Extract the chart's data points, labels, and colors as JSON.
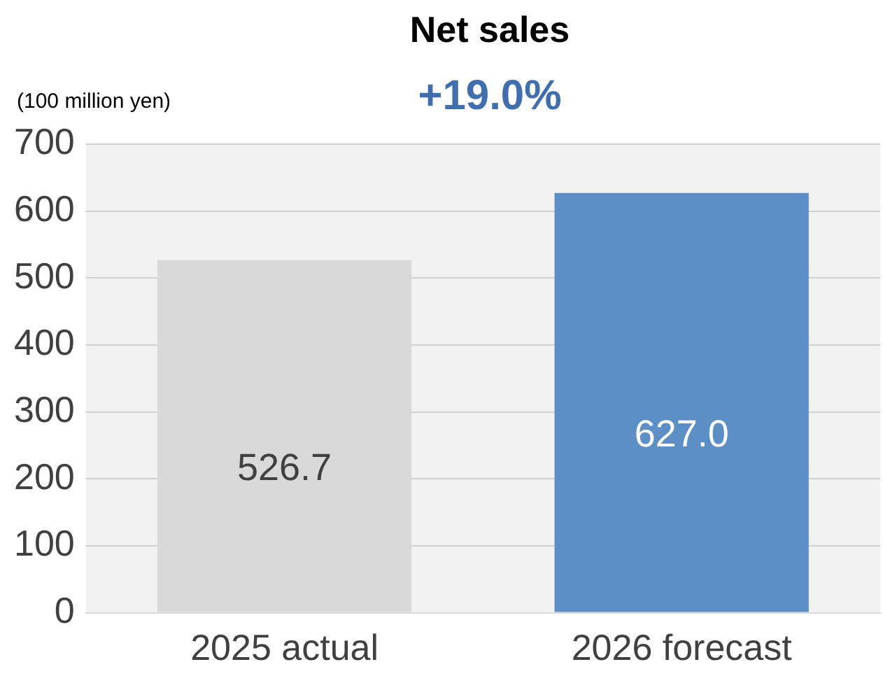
{
  "chart_data": {
    "type": "bar",
    "title": "Net sales",
    "subtitle": "+19.0%",
    "ylabel": "(100 million yen)",
    "categories": [
      "2025 actual",
      "2026 forecast"
    ],
    "values": [
      526.7,
      627.0
    ],
    "colors": [
      "#d9d9d9",
      "#5b8fc5"
    ],
    "value_labels": [
      "526.7",
      "627.0"
    ],
    "ylim": [
      0,
      700
    ],
    "yticks": [
      0,
      100,
      200,
      300,
      400,
      500,
      600,
      700
    ],
    "grid": "y"
  }
}
